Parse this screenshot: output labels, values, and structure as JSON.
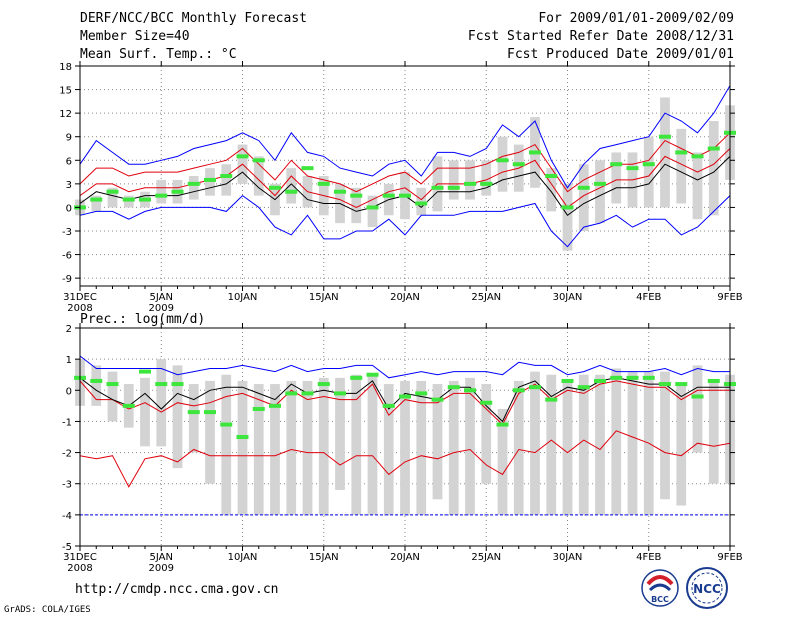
{
  "header": {
    "title": "DERF/NCC/BCC Monthly Forecast",
    "member_size": "Member Size=40",
    "variable": "Mean Surf. Temp.: °C",
    "period": "For 2009/01/01-2009/02/09",
    "started": "Fcst Started Refer Date 2008/12/31",
    "produced": "Fcst Produced Date 2009/01/01"
  },
  "footer": {
    "url": "http://cmdp.ncc.cma.gov.cn",
    "grads": "GrADS: COLA/IGES",
    "logo_bcc_label": "BCC",
    "logo_ncc_label": "NCC"
  },
  "colors": {
    "ensemble_bar": "#d3d3d3",
    "mean_line": "#000000",
    "inner_band": "#e0000c",
    "outer_band": "#0000ff",
    "marker": "#3de63d",
    "grid": "#888888"
  },
  "chart_data": [
    {
      "type": "line",
      "name": "temperature",
      "ylabel": "Mean Surf. Temp.: °C",
      "ylim": [
        -10,
        18
      ],
      "yticks": [
        -9,
        -6,
        -3,
        0,
        3,
        6,
        9,
        12,
        15,
        18
      ],
      "xlim": [
        0,
        40
      ],
      "xticks": [
        {
          "day": 0,
          "label": "31DEC",
          "sub": "2008"
        },
        {
          "day": 5,
          "label": "5JAN",
          "sub": "2009"
        },
        {
          "day": 10,
          "label": "10JAN",
          "sub": ""
        },
        {
          "day": 15,
          "label": "15JAN",
          "sub": ""
        },
        {
          "day": 20,
          "label": "20JAN",
          "sub": ""
        },
        {
          "day": 25,
          "label": "25JAN",
          "sub": ""
        },
        {
          "day": 30,
          "label": "30JAN",
          "sub": ""
        },
        {
          "day": 35,
          "label": "4FEB",
          "sub": ""
        },
        {
          "day": 40,
          "label": "9FEB",
          "sub": ""
        }
      ],
      "days": [
        0,
        1,
        2,
        3,
        4,
        5,
        6,
        7,
        8,
        9,
        10,
        11,
        12,
        13,
        14,
        15,
        16,
        17,
        18,
        19,
        20,
        21,
        22,
        23,
        24,
        25,
        26,
        27,
        28,
        29,
        30,
        31,
        32,
        33,
        34,
        35,
        36,
        37,
        38,
        39,
        40
      ],
      "bar_low": [
        -1,
        -0.5,
        0,
        0,
        0,
        0.5,
        0.5,
        1,
        1.5,
        1.5,
        3,
        1.5,
        -1,
        0.5,
        0,
        -1,
        -2,
        -2,
        -2.5,
        -1,
        -1.5,
        -1,
        -0.5,
        1,
        1,
        1.5,
        2,
        2,
        2.5,
        -0.5,
        -5.5,
        -3,
        -2,
        0.5,
        0,
        0,
        0,
        0.5,
        -1.5,
        -1,
        3.5
      ],
      "bar_high": [
        1,
        1.5,
        2.5,
        1.5,
        2,
        3.5,
        3.5,
        4,
        5,
        5.5,
        8,
        6.5,
        3,
        5,
        4,
        4,
        3,
        2.5,
        1.5,
        3,
        4.5,
        2.5,
        6.5,
        6,
        6,
        6,
        9,
        8,
        11.5,
        5,
        3,
        5.5,
        6,
        7,
        7,
        9,
        14,
        10,
        7,
        11,
        13
      ],
      "mean": [
        0.5,
        2,
        1.5,
        1,
        1.5,
        1.5,
        1.5,
        2,
        2.5,
        3,
        4.5,
        2.5,
        1,
        3,
        1,
        0.5,
        0.5,
        -0.5,
        0,
        1,
        1.5,
        0,
        2,
        2,
        2,
        2.5,
        3.5,
        4,
        4.5,
        2,
        -1,
        0.5,
        1.5,
        2.5,
        2.5,
        3,
        5.5,
        4.5,
        3.5,
        4.5,
        6.5
      ],
      "inner_low": [
        1.5,
        3,
        3,
        2,
        2.5,
        2.5,
        2.5,
        3,
        3.5,
        4,
        5.5,
        3.5,
        1.5,
        4,
        2,
        1.5,
        1,
        0,
        1,
        2,
        2.5,
        1,
        3,
        3,
        3,
        3.5,
        4.5,
        5,
        6,
        3,
        0,
        1.5,
        2.5,
        3.5,
        3.5,
        4,
        6.5,
        5.5,
        4.5,
        5.5,
        7.5
      ],
      "inner_high": [
        3,
        5,
        5,
        4,
        4.5,
        4.5,
        4.5,
        5,
        5.5,
        6,
        7.5,
        5.5,
        3.5,
        6,
        4,
        3.5,
        3,
        2,
        3,
        4,
        4.5,
        3,
        5,
        5,
        5,
        5.5,
        6.5,
        7,
        8,
        5,
        2,
        3.5,
        4.5,
        5.5,
        5.5,
        6,
        8.5,
        7.5,
        6.5,
        7.5,
        9.5
      ],
      "outer_low": [
        -1,
        -0.5,
        -0.5,
        -1.5,
        -0.5,
        0,
        0,
        0,
        0,
        -0.5,
        1.5,
        0,
        -2.5,
        -3.5,
        -1,
        -4,
        -4,
        -3,
        -3,
        -1.5,
        -3.5,
        -1,
        -1,
        -1,
        -0.5,
        -0.5,
        -0.5,
        0,
        0.5,
        -3,
        -5,
        -2.5,
        -2,
        -1,
        -2.5,
        -1.5,
        -1.5,
        -3.5,
        -2.5,
        -0.5,
        1.5
      ],
      "outer_high": [
        5.5,
        8.5,
        7,
        5.5,
        5.5,
        6,
        6.5,
        7.5,
        8,
        8.5,
        9.5,
        8.5,
        6,
        9.5,
        7,
        6.5,
        5,
        4.5,
        4,
        5.5,
        6,
        4,
        7,
        7,
        6.5,
        7.5,
        10.5,
        9,
        11,
        6,
        2.5,
        5.5,
        7.5,
        8,
        8.5,
        9,
        12,
        11,
        9.5,
        12,
        15.5
      ],
      "markers": [
        0,
        1,
        2,
        1,
        1,
        1.5,
        2,
        3,
        3.5,
        4,
        6.5,
        6,
        2.5,
        2,
        5,
        3,
        2,
        1.5,
        0,
        1.5,
        1.5,
        0.5,
        2.5,
        2.5,
        3,
        3,
        6,
        5.5,
        7,
        4,
        0,
        2.5,
        3,
        5.5,
        5,
        5.5,
        9,
        7,
        6.5,
        7.5,
        9.5
      ]
    },
    {
      "type": "line",
      "name": "precipitation",
      "ylabel": "Prec.: log(mm/d)",
      "ylim": [
        -5,
        2
      ],
      "yticks": [
        -5,
        -4,
        -3,
        -2,
        -1,
        0,
        1,
        2
      ],
      "xlim": [
        0,
        40
      ],
      "xticks": [
        {
          "day": 0,
          "label": "31DEC",
          "sub": "2008"
        },
        {
          "day": 5,
          "label": "5JAN",
          "sub": "2009"
        },
        {
          "day": 10,
          "label": "10JAN",
          "sub": ""
        },
        {
          "day": 15,
          "label": "15JAN",
          "sub": ""
        },
        {
          "day": 20,
          "label": "20JAN",
          "sub": ""
        },
        {
          "day": 25,
          "label": "25JAN",
          "sub": ""
        },
        {
          "day": 30,
          "label": "30JAN",
          "sub": ""
        },
        {
          "day": 35,
          "label": "4FEB",
          "sub": ""
        },
        {
          "day": 40,
          "label": "9FEB",
          "sub": ""
        }
      ],
      "days": [
        0,
        1,
        2,
        3,
        4,
        5,
        6,
        7,
        8,
        9,
        10,
        11,
        12,
        13,
        14,
        15,
        16,
        17,
        18,
        19,
        20,
        21,
        22,
        23,
        24,
        25,
        26,
        27,
        28,
        29,
        30,
        31,
        32,
        33,
        34,
        35,
        36,
        37,
        38,
        39,
        40
      ],
      "bar_low": [
        -0.5,
        -0.5,
        -1,
        -1.2,
        -1.8,
        -1.8,
        -2.5,
        -2,
        -3,
        -4,
        -4,
        -4,
        -4,
        -4,
        -4,
        -4,
        -3.2,
        -4,
        -4,
        -4,
        -4,
        -4,
        -3.5,
        -4,
        -4,
        -3,
        -4,
        -4,
        -4,
        -4,
        -4,
        -4,
        -4,
        -4,
        -4,
        -4,
        -3.5,
        -3.7,
        -2,
        -3,
        -3
      ],
      "bar_high": [
        1,
        0.8,
        0.6,
        0.2,
        0.4,
        1,
        0.8,
        0.2,
        0.3,
        0.5,
        0.3,
        0.2,
        0.2,
        0.3,
        0.3,
        0.4,
        0.4,
        0.5,
        0.5,
        0.2,
        0.3,
        0.3,
        0.2,
        0.3,
        0.4,
        0.2,
        -0.6,
        0.3,
        0.6,
        0.5,
        0.3,
        0.5,
        0.5,
        0.7,
        0.6,
        0.6,
        0.6,
        0.2,
        0.8,
        0.3,
        0.5
      ],
      "mean": [
        0.4,
        0,
        -0.3,
        -0.5,
        -0.1,
        -0.6,
        -0.1,
        -0.3,
        0,
        0.1,
        0.1,
        -0.1,
        -0.3,
        0.2,
        -0.1,
        0,
        -0.1,
        -0.1,
        0.3,
        -0.6,
        -0.1,
        -0.2,
        -0.3,
        0.1,
        0.1,
        -0.5,
        -1,
        0.1,
        0.3,
        -0.2,
        0.1,
        0,
        0.3,
        0.4,
        0.3,
        0.2,
        0.2,
        -0.2,
        0.1,
        0.1,
        0.1
      ],
      "inner_low": [
        -2.1,
        -2.2,
        -2.1,
        -3.1,
        -2.2,
        -2.1,
        -2.3,
        -1.9,
        -2.1,
        -2.1,
        -2.1,
        -2.1,
        -2.1,
        -1.9,
        -2,
        -2,
        -2.4,
        -2.1,
        -2.1,
        -2.7,
        -2.3,
        -2.1,
        -2.2,
        -2,
        -1.9,
        -2.4,
        -2.7,
        -1.9,
        -2,
        -1.6,
        -2,
        -1.6,
        -1.9,
        -1.3,
        -1.5,
        -1.7,
        -2,
        -2.1,
        -1.7,
        -1.8,
        -1.7
      ],
      "inner_high": [
        0.3,
        -0.3,
        -0.3,
        -0.6,
        -0.4,
        -0.7,
        -0.4,
        -0.5,
        -0.4,
        -0.2,
        -0.1,
        -0.3,
        -0.5,
        0,
        -0.3,
        -0.2,
        -0.3,
        -0.3,
        0.2,
        -0.8,
        -0.3,
        -0.4,
        -0.4,
        -0.1,
        -0.1,
        -0.6,
        -1.1,
        -0.1,
        0.2,
        -0.3,
        0,
        -0.1,
        0.2,
        0.3,
        0.2,
        0.1,
        0.1,
        -0.3,
        0,
        0,
        0
      ],
      "outer_low": [
        -4,
        -4,
        -4,
        -4,
        -4,
        -4,
        -4,
        -4,
        -4,
        -4,
        -4,
        -4,
        -4,
        -4,
        -4,
        -4,
        -4,
        -4,
        -4,
        -4,
        -4,
        -4,
        -4,
        -4,
        -4,
        -4,
        -4,
        -4,
        -4,
        -4,
        -4,
        -4,
        -4,
        -4,
        -4,
        -4,
        -4,
        -4,
        -4,
        -4,
        -4
      ],
      "outer_high": [
        1.1,
        0.7,
        0.7,
        0.7,
        0.7,
        0.7,
        0.5,
        0.6,
        0.7,
        0.7,
        0.8,
        0.7,
        0.6,
        0.8,
        0.6,
        0.7,
        0.7,
        0.8,
        0.8,
        0.4,
        0.5,
        0.6,
        0.5,
        0.6,
        0.6,
        0.6,
        0.5,
        0.9,
        0.8,
        0.8,
        0.5,
        0.6,
        0.8,
        0.6,
        0.6,
        0.6,
        0.7,
        0.5,
        0.7,
        0.6,
        0.6
      ],
      "markers": [
        0.4,
        0.3,
        0.2,
        -0.5,
        0.6,
        0.2,
        0.2,
        -0.7,
        -0.7,
        -1.1,
        -1.5,
        -0.6,
        -0.5,
        -0.1,
        -0.1,
        0.2,
        -0.1,
        0.4,
        0.5,
        -0.5,
        -0.2,
        -0.1,
        -0.3,
        0.1,
        0,
        -0.4,
        -1.1,
        0,
        0.1,
        -0.3,
        0.3,
        0.1,
        0.3,
        0.4,
        0.4,
        0.4,
        0.2,
        0.2,
        -0.2,
        0.3,
        0.2
      ]
    }
  ]
}
